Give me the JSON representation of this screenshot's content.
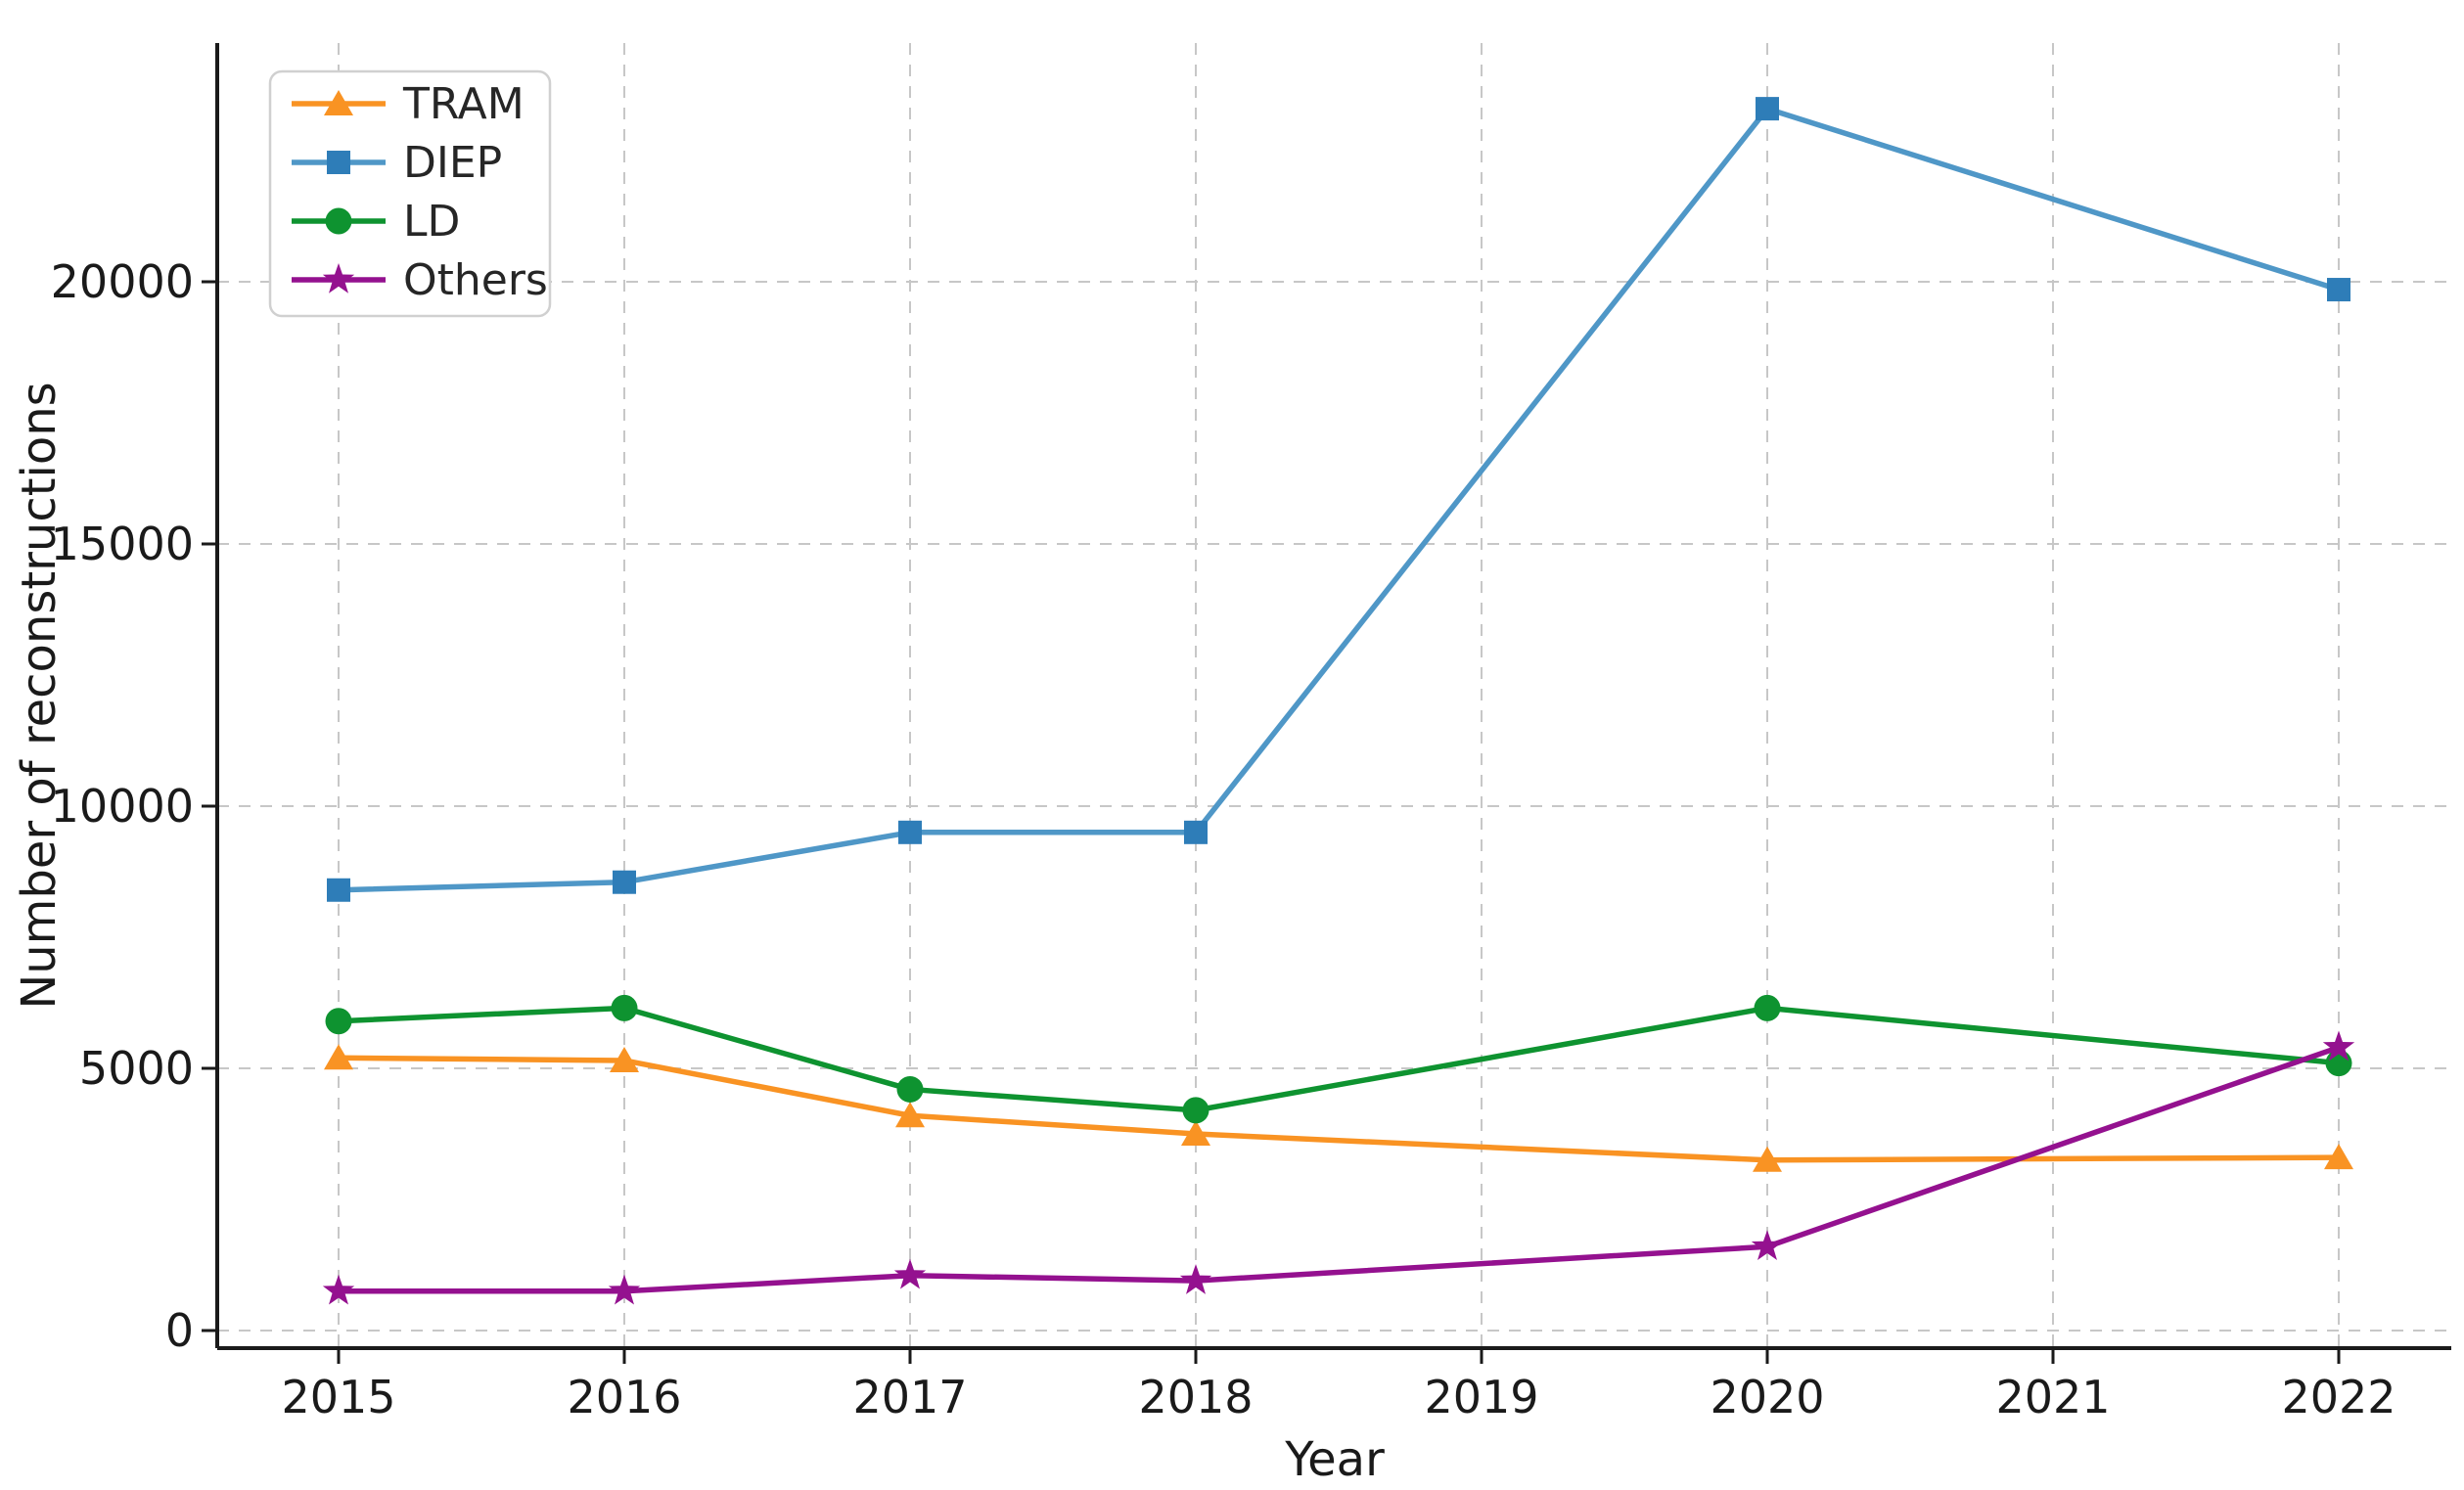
{
  "chart_data": {
    "type": "line",
    "title": "",
    "xlabel": "Year",
    "ylabel": "Number of reconstructions",
    "x_ticks": [
      2015,
      2016,
      2017,
      2018,
      2019,
      2020,
      2021,
      2022
    ],
    "y_ticks": [
      0,
      5000,
      10000,
      15000,
      20000
    ],
    "xlim": [
      2014.6,
      2022.4
    ],
    "ylim": [
      0,
      24550
    ],
    "grid": "dashed-both-axes",
    "grid_color": "#c7c7c7",
    "axis_color": "#1a1a1a",
    "legend_position": "upper-left",
    "legend_entries": [
      "TRAM",
      "DIEP",
      "LD",
      "Others"
    ],
    "series": [
      {
        "name": "TRAM",
        "marker": "triangle-up",
        "color": "#f99323",
        "line_color": "#f99323",
        "x": [
          2015,
          2016,
          2017,
          2018,
          2020,
          2022
        ],
        "values": [
          5200,
          5150,
          4100,
          3750,
          3250,
          3300
        ]
      },
      {
        "name": "DIEP",
        "marker": "square",
        "color": "#2e7db8",
        "line_color": "#4f97c7",
        "x": [
          2015,
          2016,
          2017,
          2018,
          2020,
          2022
        ],
        "values": [
          8400,
          8550,
          9500,
          9500,
          23300,
          19850
        ]
      },
      {
        "name": "LD",
        "marker": "circle",
        "color": "#0e9330",
        "line_color": "#0e9330",
        "x": [
          2015,
          2016,
          2017,
          2018,
          2020,
          2022
        ],
        "values": [
          5900,
          6150,
          4600,
          4200,
          6150,
          5100
        ]
      },
      {
        "name": "Others",
        "marker": "star",
        "color": "#94118f",
        "line_color": "#94118f",
        "x": [
          2015,
          2016,
          2017,
          2018,
          2020,
          2022
        ],
        "values": [
          750,
          750,
          1050,
          950,
          1600,
          5400
        ]
      }
    ]
  }
}
